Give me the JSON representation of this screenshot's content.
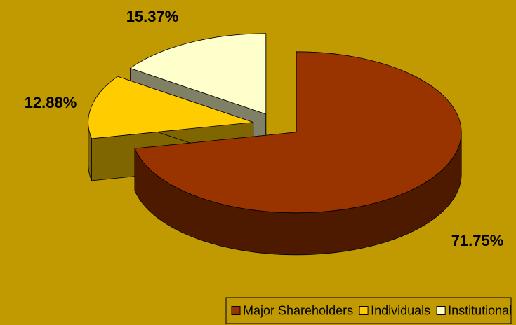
{
  "chart_data": {
    "type": "pie",
    "labels": [
      "Major Shareholders",
      "Individuals",
      "Institutional Investors"
    ],
    "values": [
      71.75,
      12.88,
      15.37
    ],
    "value_labels": [
      "71.75%",
      "12.88%",
      "15.37%"
    ],
    "colors": [
      "#993300",
      "#FFCC00",
      "#FFFFCC"
    ],
    "legend": "bottom-right"
  }
}
